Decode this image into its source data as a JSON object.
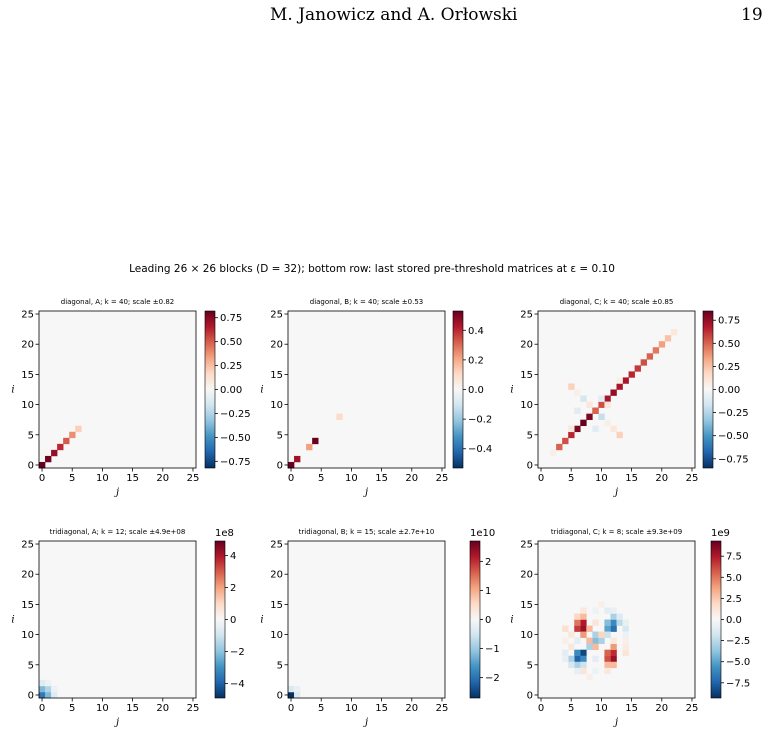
{
  "header": {
    "authors": "M. Janowicz and A. Orłowski",
    "page_number": "19"
  },
  "figure": {
    "suptitle": "Leading 26 × 26 blocks (D = 32); bottom row: last stored pre-threshold matrices at ε = 0.10"
  },
  "colors": {
    "cmap_neg": "#053061",
    "cmap_mid": "#f7f7f7",
    "cmap_pos": "#67001f"
  },
  "chart_data": [
    {
      "type": "heatmap",
      "title": "diagonal, A; k = 40; scale ±0.82",
      "xlabel": "j",
      "ylabel": "i",
      "x_ticks": [
        "0",
        "5",
        "10",
        "15",
        "20",
        "25"
      ],
      "y_ticks": [
        "0",
        "5",
        "10",
        "15",
        "20",
        "25"
      ],
      "clim": [
        -0.82,
        0.82
      ],
      "colorbar_ticks": [
        "0.75",
        "0.50",
        "0.25",
        "0.00",
        "−0.25",
        "−0.50",
        "−0.75"
      ],
      "colorbar_tick_values": [
        0.75,
        0.5,
        0.25,
        0,
        -0.25,
        -0.5,
        -0.75
      ],
      "colorbar_exponent": "",
      "cells": [
        [
          0,
          0,
          0.82
        ],
        [
          1,
          1,
          0.8
        ],
        [
          2,
          2,
          0.72
        ],
        [
          3,
          3,
          0.62
        ],
        [
          4,
          4,
          0.5
        ],
        [
          5,
          5,
          0.38
        ],
        [
          6,
          6,
          0.2
        ]
      ]
    },
    {
      "type": "heatmap",
      "title": "diagonal, B; k = 40; scale ±0.53",
      "xlabel": "j",
      "ylabel": "i",
      "x_ticks": [
        "0",
        "5",
        "10",
        "15",
        "20",
        "25"
      ],
      "y_ticks": [
        "0",
        "5",
        "10",
        "15",
        "20",
        "25"
      ],
      "clim": [
        -0.53,
        0.53
      ],
      "colorbar_ticks": [
        "0.4",
        "0.2",
        "0.0",
        "−0.2",
        "−0.4"
      ],
      "colorbar_tick_values": [
        0.4,
        0.2,
        0,
        -0.2,
        -0.4
      ],
      "colorbar_exponent": "",
      "cells": [
        [
          0,
          0,
          0.53
        ],
        [
          1,
          1,
          0.45
        ],
        [
          3,
          3,
          0.22
        ],
        [
          4,
          4,
          0.53
        ],
        [
          8,
          8,
          0.1
        ]
      ]
    },
    {
      "type": "heatmap",
      "title": "diagonal, C; k = 40; scale ±0.85",
      "xlabel": "j",
      "ylabel": "i",
      "x_ticks": [
        "0",
        "5",
        "10",
        "15",
        "20",
        "25"
      ],
      "y_ticks": [
        "0",
        "5",
        "10",
        "15",
        "20",
        "25"
      ],
      "clim": [
        -0.85,
        0.85
      ],
      "colorbar_ticks": [
        "0.75",
        "0.50",
        "0.25",
        "0.00",
        "−0.25",
        "−0.50",
        "−0.75"
      ],
      "colorbar_tick_values": [
        0.75,
        0.5,
        0.25,
        0,
        -0.25,
        -0.5,
        -0.75
      ],
      "colorbar_exponent": "",
      "cells": [
        [
          2,
          2,
          0.05
        ],
        [
          3,
          3,
          0.5
        ],
        [
          4,
          4,
          0.55
        ],
        [
          5,
          5,
          0.65
        ],
        [
          6,
          6,
          0.8
        ],
        [
          7,
          7,
          0.85
        ],
        [
          8,
          8,
          0.8
        ],
        [
          9,
          9,
          0.5
        ],
        [
          10,
          10,
          0.55
        ],
        [
          11,
          11,
          0.7
        ],
        [
          12,
          12,
          0.75
        ],
        [
          13,
          13,
          0.7
        ],
        [
          14,
          14,
          0.7
        ],
        [
          15,
          15,
          0.65
        ],
        [
          16,
          16,
          0.6
        ],
        [
          17,
          17,
          0.55
        ],
        [
          18,
          18,
          0.5
        ],
        [
          19,
          19,
          0.45
        ],
        [
          20,
          20,
          0.35
        ],
        [
          21,
          21,
          0.25
        ],
        [
          22,
          22,
          0.1
        ],
        [
          5,
          13,
          0.2
        ],
        [
          6,
          12,
          0.1
        ],
        [
          7,
          11,
          0.05
        ],
        [
          8,
          10,
          -0.2
        ],
        [
          9,
          9,
          0.5
        ],
        [
          10,
          8,
          0.1
        ],
        [
          11,
          7,
          -0.15
        ],
        [
          12,
          6,
          0.05
        ],
        [
          13,
          5,
          0.2
        ],
        [
          9,
          6,
          -0.1
        ],
        [
          6,
          9,
          -0.1
        ],
        [
          11,
          10,
          -0.1
        ],
        [
          10,
          11,
          0.1
        ],
        [
          6,
          5,
          0.1
        ],
        [
          14,
          13,
          0.05
        ]
      ]
    },
    {
      "type": "heatmap",
      "title": "tridiagonal, A; k = 12; scale ±4.9e+08",
      "xlabel": "j",
      "ylabel": "i",
      "x_ticks": [
        "0",
        "5",
        "10",
        "15",
        "20",
        "25"
      ],
      "y_ticks": [
        "0",
        "5",
        "10",
        "15",
        "20",
        "25"
      ],
      "clim": [
        -4.9,
        4.9
      ],
      "colorbar_ticks": [
        "4",
        "2",
        "0",
        "−2",
        "−4"
      ],
      "colorbar_tick_values": [
        4,
        2,
        0,
        -2,
        -4
      ],
      "colorbar_exponent": "1e8",
      "cells": [
        [
          0,
          0,
          -3.5
        ],
        [
          1,
          0,
          -2.2
        ],
        [
          0,
          1,
          -2.2
        ],
        [
          1,
          1,
          -1.5
        ],
        [
          2,
          0,
          -0.6
        ],
        [
          0,
          2,
          -0.6
        ],
        [
          2,
          1,
          -0.3
        ],
        [
          1,
          2,
          -0.3
        ]
      ]
    },
    {
      "type": "heatmap",
      "title": "tridiagonal, B; k = 15; scale ±2.7e+10",
      "xlabel": "j",
      "ylabel": "i",
      "x_ticks": [
        "0",
        "5",
        "10",
        "15",
        "20",
        "25"
      ],
      "y_ticks": [
        "0",
        "5",
        "10",
        "15",
        "20",
        "25"
      ],
      "clim": [
        -2.7,
        2.7
      ],
      "colorbar_ticks": [
        "2",
        "1",
        "0",
        "−1",
        "−2"
      ],
      "colorbar_tick_values": [
        2,
        1,
        0,
        -1,
        -2
      ],
      "colorbar_exponent": "1e10",
      "cells": [
        [
          0,
          0,
          -2.7
        ],
        [
          1,
          0,
          -0.4
        ],
        [
          0,
          1,
          -0.4
        ],
        [
          1,
          1,
          -0.2
        ]
      ]
    },
    {
      "type": "heatmap",
      "title": "tridiagonal, C; k = 8; scale ±9.3e+09",
      "xlabel": "j",
      "ylabel": "i",
      "x_ticks": [
        "0",
        "5",
        "10",
        "15",
        "20",
        "25"
      ],
      "y_ticks": [
        "0",
        "5",
        "10",
        "15",
        "20",
        "25"
      ],
      "clim": [
        -9.3,
        9.3
      ],
      "colorbar_ticks": [
        "7.5",
        "5.0",
        "2.5",
        "0.0",
        "−2.5",
        "−5.0",
        "−7.5"
      ],
      "colorbar_tick_values": [
        7.5,
        5,
        2.5,
        0,
        -2.5,
        -5,
        -7.5
      ],
      "colorbar_exponent": "1e9",
      "cells": [
        [
          6,
          6,
          -7.5
        ],
        [
          7,
          7,
          -8.5
        ],
        [
          6,
          7,
          -6
        ],
        [
          7,
          6,
          -6
        ],
        [
          6,
          12,
          8
        ],
        [
          7,
          12,
          7
        ],
        [
          6,
          11,
          6
        ],
        [
          7,
          11,
          5.5
        ],
        [
          5,
          11,
          3
        ],
        [
          8,
          12,
          4
        ],
        [
          11,
          12,
          -7
        ],
        [
          12,
          12,
          -6
        ],
        [
          11,
          11,
          -5
        ],
        [
          12,
          11,
          -4
        ],
        [
          10,
          11,
          -2
        ],
        [
          11,
          7,
          8
        ],
        [
          12,
          7,
          7.5
        ],
        [
          11,
          6,
          6.5
        ],
        [
          12,
          6,
          5
        ],
        [
          10,
          7,
          4
        ],
        [
          11,
          8,
          3
        ],
        [
          9,
          9,
          -4
        ],
        [
          9,
          10,
          -3
        ],
        [
          10,
          9,
          -3
        ],
        [
          8,
          9,
          3
        ],
        [
          9,
          8,
          3
        ],
        [
          10,
          10,
          2
        ],
        [
          8,
          8,
          -3
        ],
        [
          5,
          6,
          -3
        ],
        [
          6,
          5,
          -3
        ],
        [
          5,
          7,
          -2
        ],
        [
          13,
          12,
          -3
        ],
        [
          12,
          13,
          -2.5
        ],
        [
          13,
          6,
          2
        ],
        [
          13,
          7,
          3
        ],
        [
          5,
          12,
          3
        ],
        [
          4,
          7,
          1.2
        ],
        [
          4,
          11,
          1
        ],
        [
          14,
          7,
          1
        ],
        [
          14,
          11,
          -1
        ],
        [
          7,
          4,
          -1
        ],
        [
          11,
          4,
          1.5
        ],
        [
          7,
          14,
          1.2
        ],
        [
          11,
          14,
          -1.5
        ],
        [
          8,
          5,
          1
        ],
        [
          10,
          5,
          1
        ],
        [
          8,
          14,
          0.8
        ],
        [
          10,
          14,
          -0.6
        ],
        [
          3,
          8,
          0.5
        ],
        [
          15,
          10,
          0.5
        ],
        [
          5,
          5,
          -1.5
        ],
        [
          13,
          13,
          -1.2
        ],
        [
          4,
          6,
          -0.8
        ],
        [
          6,
          4,
          -0.8
        ],
        [
          14,
          12,
          -0.7
        ],
        [
          12,
          14,
          -0.7
        ],
        [
          9,
          12,
          1
        ],
        [
          12,
          9,
          1.2
        ],
        [
          9,
          6,
          -1
        ],
        [
          6,
          9,
          -1
        ],
        [
          9,
          4,
          0.6
        ],
        [
          9,
          14,
          0.6
        ],
        [
          4,
          9,
          -0.5
        ],
        [
          14,
          9,
          -0.5
        ]
      ]
    }
  ]
}
